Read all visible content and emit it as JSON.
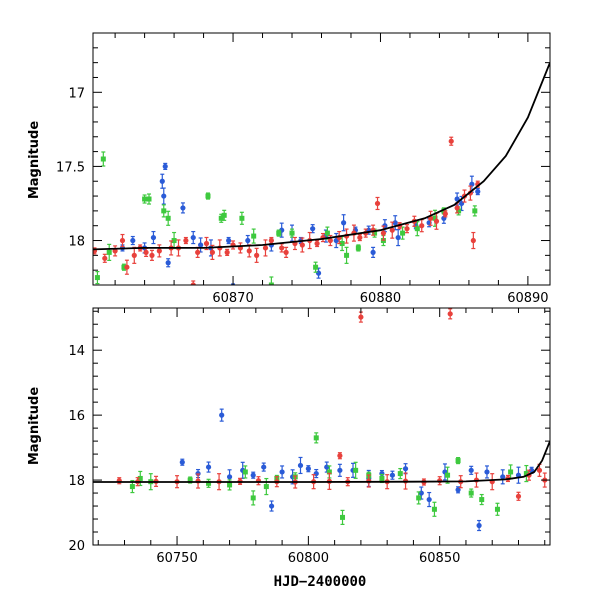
{
  "chart_data": [
    {
      "type": "scatter",
      "title": "",
      "xlabel": "",
      "ylabel": "Magnitude",
      "xlim": [
        60860.5,
        60891.5
      ],
      "ylim": [
        18.3,
        16.6
      ],
      "y_inverted": true,
      "xticks": [
        60870,
        60880,
        60890
      ],
      "xticklabels": [
        "60870",
        "60880",
        "60890"
      ],
      "yticks": [
        17,
        17.5,
        18
      ],
      "yticklabels": [
        "17",
        "17.5",
        "18"
      ],
      "grid": false,
      "series": [
        {
          "color": "#2a5bd7",
          "points": [
            [
              60862.5,
              18.05
            ],
            [
              60863.2,
              18.0
            ],
            [
              60864.0,
              18.05
            ],
            [
              60864.6,
              17.98
            ],
            [
              60865.2,
              17.6
            ],
            [
              60865.3,
              17.7
            ],
            [
              60865.4,
              17.5
            ],
            [
              60865.6,
              18.15
            ],
            [
              60866.6,
              17.78
            ],
            [
              60867.3,
              17.98
            ],
            [
              60867.8,
              18.03
            ],
            [
              60868.5,
              18.05
            ],
            [
              60869.7,
              18.0
            ],
            [
              60870.0,
              18.32
            ],
            [
              60871.0,
              18.0
            ],
            [
              60872.6,
              18.03
            ],
            [
              60873.3,
              17.93
            ],
            [
              60874.0,
              17.95
            ],
            [
              60874.6,
              18.0
            ],
            [
              60875.4,
              17.92
            ],
            [
              60875.8,
              18.22
            ],
            [
              60876.3,
              17.97
            ],
            [
              60877.0,
              18.0
            ],
            [
              60877.5,
              17.88
            ],
            [
              60878.3,
              17.93
            ],
            [
              60879.2,
              17.93
            ],
            [
              60879.5,
              18.08
            ],
            [
              60880.3,
              17.9
            ],
            [
              60881.0,
              17.88
            ],
            [
              60881.2,
              17.98
            ],
            [
              60882.4,
              17.9
            ],
            [
              60883.3,
              17.88
            ],
            [
              60884.3,
              17.85
            ],
            [
              60885.2,
              17.72
            ],
            [
              60885.5,
              17.75
            ],
            [
              60886.2,
              17.62
            ],
            [
              60886.6,
              17.67
            ]
          ]
        },
        {
          "color": "#3ec93e",
          "points": [
            [
              60860.8,
              18.25
            ],
            [
              60861.2,
              17.45
            ],
            [
              60861.6,
              18.08
            ],
            [
              60862.6,
              18.18
            ],
            [
              60864.0,
              17.72
            ],
            [
              60864.3,
              17.72
            ],
            [
              60865.3,
              17.8
            ],
            [
              60865.6,
              17.85
            ],
            [
              60866.0,
              18.0
            ],
            [
              60868.3,
              17.7
            ],
            [
              60869.2,
              17.85
            ],
            [
              60869.4,
              17.83
            ],
            [
              60870.6,
              17.85
            ],
            [
              60871.4,
              17.97
            ],
            [
              60872.6,
              18.3
            ],
            [
              60873.1,
              17.95
            ],
            [
              60874.0,
              17.95
            ],
            [
              60875.6,
              18.18
            ],
            [
              60876.4,
              17.95
            ],
            [
              60877.4,
              18.02
            ],
            [
              60877.7,
              18.1
            ],
            [
              60878.5,
              18.05
            ],
            [
              60879.6,
              17.95
            ],
            [
              60880.2,
              18.0
            ],
            [
              60881.5,
              17.95
            ],
            [
              60882.5,
              17.92
            ],
            [
              60883.7,
              17.85
            ],
            [
              60884.3,
              17.8
            ],
            [
              60885.3,
              17.8
            ],
            [
              60886.4,
              17.8
            ]
          ]
        },
        {
          "color": "#e8413c",
          "points": [
            [
              60860.6,
              18.07
            ],
            [
              60861.3,
              18.12
            ],
            [
              60862.0,
              18.07
            ],
            [
              60862.5,
              18.0
            ],
            [
              60862.8,
              18.18
            ],
            [
              60863.3,
              18.1
            ],
            [
              60863.7,
              18.05
            ],
            [
              60864.1,
              18.08
            ],
            [
              60864.5,
              18.1
            ],
            [
              60865.0,
              18.07
            ],
            [
              60865.8,
              18.05
            ],
            [
              60866.3,
              18.05
            ],
            [
              60866.8,
              18.0
            ],
            [
              60867.3,
              18.3
            ],
            [
              60867.6,
              18.08
            ],
            [
              60868.2,
              18.02
            ],
            [
              60868.6,
              18.08
            ],
            [
              60869.1,
              18.05
            ],
            [
              60869.6,
              18.08
            ],
            [
              60870.0,
              18.03
            ],
            [
              60870.5,
              18.05
            ],
            [
              60871.1,
              18.07
            ],
            [
              60871.6,
              18.1
            ],
            [
              60872.2,
              18.05
            ],
            [
              60872.6,
              18.0
            ],
            [
              60873.3,
              18.05
            ],
            [
              60873.6,
              18.08
            ],
            [
              60874.2,
              18.02
            ],
            [
              60874.7,
              18.03
            ],
            [
              60875.2,
              18.0
            ],
            [
              60875.7,
              18.02
            ],
            [
              60876.1,
              17.98
            ],
            [
              60876.6,
              18.0
            ],
            [
              60877.2,
              17.98
            ],
            [
              60877.7,
              17.97
            ],
            [
              60878.2,
              17.95
            ],
            [
              60878.6,
              17.98
            ],
            [
              60879.0,
              17.95
            ],
            [
              60879.5,
              17.93
            ],
            [
              60879.8,
              17.75
            ],
            [
              60880.2,
              17.95
            ],
            [
              60880.8,
              17.93
            ],
            [
              60881.3,
              17.9
            ],
            [
              60881.8,
              17.92
            ],
            [
              60882.3,
              17.87
            ],
            [
              60882.8,
              17.9
            ],
            [
              60883.4,
              17.85
            ],
            [
              60883.8,
              17.87
            ],
            [
              60884.4,
              17.82
            ],
            [
              60884.8,
              17.33
            ],
            [
              60885.2,
              17.78
            ],
            [
              60885.7,
              17.7
            ],
            [
              60886.1,
              17.68
            ],
            [
              60886.3,
              18.0
            ],
            [
              60886.6,
              17.62
            ]
          ]
        }
      ],
      "model_curve": [
        [
          60860.5,
          18.06
        ],
        [
          60864,
          18.05
        ],
        [
          60868,
          18.05
        ],
        [
          60872,
          18.03
        ],
        [
          60876,
          17.99
        ],
        [
          60880,
          17.93
        ],
        [
          60883,
          17.85
        ],
        [
          60885,
          17.76
        ],
        [
          60887,
          17.6
        ],
        [
          60888.5,
          17.43
        ],
        [
          60890,
          17.17
        ],
        [
          60891.5,
          16.8
        ]
      ]
    },
    {
      "type": "scatter",
      "title": "",
      "xlabel": "HJD−2400000",
      "ylabel": "Magnitude",
      "xlim": [
        60718,
        60892
      ],
      "ylim": [
        20,
        12.7
      ],
      "y_inverted": true,
      "xticks": [
        60750,
        60800,
        60850
      ],
      "xticklabels": [
        "60750",
        "60800",
        "60850"
      ],
      "yticks": [
        14,
        16,
        18,
        20
      ],
      "yticklabels": [
        "14",
        "16",
        "18",
        "20"
      ],
      "grid": false,
      "series": [
        {
          "color": "#2a5bd7",
          "points": [
            [
              60752,
              17.45
            ],
            [
              60758,
              17.8
            ],
            [
              60762,
              17.6
            ],
            [
              60767,
              16.0
            ],
            [
              60770,
              17.9
            ],
            [
              60775,
              17.7
            ],
            [
              60779,
              17.85
            ],
            [
              60783,
              17.6
            ],
            [
              60786,
              18.8
            ],
            [
              60790,
              17.75
            ],
            [
              60794,
              17.9
            ],
            [
              60797,
              17.55
            ],
            [
              60800,
              17.65
            ],
            [
              60803,
              17.8
            ],
            [
              60807,
              17.6
            ],
            [
              60812,
              17.7
            ],
            [
              60817,
              17.7
            ],
            [
              60823,
              17.95
            ],
            [
              60828,
              17.8
            ],
            [
              60832,
              17.85
            ],
            [
              60837,
              17.65
            ],
            [
              60843,
              18.4
            ],
            [
              60846,
              18.6
            ],
            [
              60852,
              17.75
            ],
            [
              60857,
              18.3
            ],
            [
              60862,
              17.7
            ],
            [
              60865,
              19.4
            ],
            [
              60868,
              17.75
            ],
            [
              60874,
              17.9
            ],
            [
              60880,
              17.85
            ],
            [
              60885,
              17.7
            ]
          ]
        },
        {
          "color": "#3ec93e",
          "points": [
            [
              60733,
              18.2
            ],
            [
              60736,
              17.95
            ],
            [
              60740,
              18.05
            ],
            [
              60755,
              18.0
            ],
            [
              60762,
              18.1
            ],
            [
              60770,
              18.15
            ],
            [
              60776,
              17.75
            ],
            [
              60779,
              18.55
            ],
            [
              60784,
              18.2
            ],
            [
              60788,
              17.95
            ],
            [
              60795,
              17.9
            ],
            [
              60803,
              16.7
            ],
            [
              60808,
              17.75
            ],
            [
              60813,
              19.15
            ],
            [
              60818,
              17.7
            ],
            [
              60823,
              17.85
            ],
            [
              60828,
              17.95
            ],
            [
              60835,
              17.8
            ],
            [
              60842,
              18.55
            ],
            [
              60848,
              18.9
            ],
            [
              60853,
              17.85
            ],
            [
              60857,
              17.4
            ],
            [
              60862,
              18.4
            ],
            [
              60866,
              18.6
            ],
            [
              60872,
              18.9
            ],
            [
              60877,
              17.75
            ],
            [
              60883,
              17.8
            ]
          ]
        },
        {
          "color": "#e8413c",
          "points": [
            [
              60728,
              18.02
            ],
            [
              60735,
              18.05
            ],
            [
              60742,
              18.04
            ],
            [
              60750,
              18.05
            ],
            [
              60758,
              18.03
            ],
            [
              60766,
              18.05
            ],
            [
              60774,
              18.04
            ],
            [
              60781,
              18.02
            ],
            [
              60788,
              18.05
            ],
            [
              60795,
              18.06
            ],
            [
              60802,
              18.05
            ],
            [
              60808,
              18.04
            ],
            [
              60812,
              17.25
            ],
            [
              60815,
              18.05
            ],
            [
              60820,
              12.98
            ],
            [
              60823,
              18.03
            ],
            [
              60830,
              18.05
            ],
            [
              60837,
              18.03
            ],
            [
              60844,
              18.06
            ],
            [
              60850,
              18.02
            ],
            [
              60854,
              12.88
            ],
            [
              60858,
              18.05
            ],
            [
              60864,
              18.0
            ],
            [
              60870,
              18.05
            ],
            [
              60876,
              17.95
            ],
            [
              60880,
              18.5
            ],
            [
              60884,
              17.85
            ],
            [
              60888,
              17.7
            ],
            [
              60890,
              18.0
            ]
          ]
        }
      ],
      "model_curve": [
        [
          60718,
          18.06
        ],
        [
          60760,
          18.06
        ],
        [
          60800,
          18.06
        ],
        [
          60840,
          18.05
        ],
        [
          60860,
          18.04
        ],
        [
          60875,
          17.98
        ],
        [
          60882,
          17.9
        ],
        [
          60886,
          17.75
        ],
        [
          60889,
          17.4
        ],
        [
          60892,
          16.8
        ]
      ]
    }
  ]
}
